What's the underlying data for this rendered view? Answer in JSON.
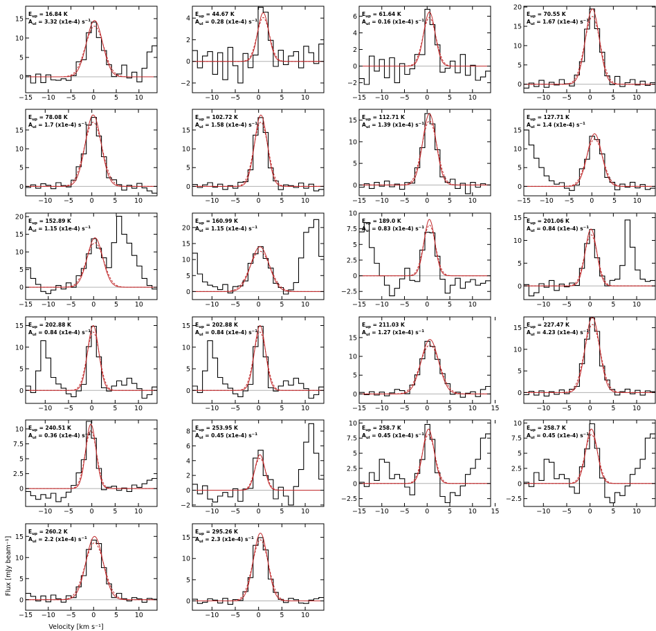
{
  "figure": {
    "xlabel": "Velocity [km s⁻¹]",
    "ylabel": "Flux [mJy beam⁻¹]"
  },
  "chart_data": [
    {
      "type": "line",
      "eup": "16.84",
      "aul": "3.32",
      "xlim": [
        -15,
        14
      ],
      "ylim": [
        -4.1,
        18.2
      ],
      "xticks": [
        -15,
        -10,
        -5,
        0,
        5,
        10
      ],
      "yticks": [
        0,
        5,
        10,
        15
      ],
      "peak": 14.5,
      "fwhm": 4.2,
      "center": 0.2,
      "bg": [
        0.3,
        -1.6,
        0.7,
        -1.5,
        0.5,
        -0.8,
        -0.9,
        -0.5,
        -1.0,
        -0.2,
        1.8,
        -1.4,
        0.4,
        0.1,
        -2.0,
        -0.3,
        0.3,
        -0.7,
        0.6,
        3.0,
        -0.3,
        1.2,
        -1.3,
        2.2,
        6.4,
        8.0
      ]
    },
    {
      "type": "line",
      "eup": "44.67",
      "aul": "0.28",
      "xlim": [
        -14.2,
        14
      ],
      "ylim": [
        -2.9,
        5.1
      ],
      "xticks": [
        -10,
        -5,
        0,
        5,
        10
      ],
      "yticks": [
        -2,
        0,
        2,
        4
      ],
      "peak": 4.5,
      "fwhm": 2.8,
      "center": 1.0,
      "bg": [
        1.0,
        -0.6,
        0.5,
        0.9,
        -1.2,
        0.8,
        -1.7,
        1.3,
        -0.4,
        -2.0,
        0.7,
        -0.9,
        -1.1,
        1.1,
        0.6,
        0.2,
        -0.8,
        1.0,
        -0.3,
        0.5,
        0.9,
        -0.6,
        1.4,
        0.8,
        -0.2,
        1.6
      ]
    },
    {
      "type": "line",
      "eup": "61.64",
      "aul": "0.16",
      "xlim": [
        -15,
        14
      ],
      "ylim": [
        -3.2,
        7.2
      ],
      "xticks": [
        -15,
        -10,
        -5,
        0,
        5,
        10
      ],
      "yticks": [
        -2,
        0,
        2,
        4,
        6
      ],
      "peak": 6.5,
      "fwhm": 3.0,
      "center": 0.5,
      "bg": [
        -1.5,
        -2.2,
        1.2,
        -0.6,
        0.8,
        -1.4,
        1.0,
        -2.0,
        0.3,
        -1.0,
        -0.4,
        0.7,
        -1.6,
        0.9,
        -0.5,
        0.2,
        -1.2,
        -0.3,
        0.6,
        -0.8,
        1.4,
        -1.1,
        0.1,
        -1.7,
        -1.3,
        -0.6
      ]
    },
    {
      "type": "line",
      "eup": "70.55",
      "aul": "1.67",
      "xlim": [
        -14.2,
        14
      ],
      "ylim": [
        -2.2,
        20.2
      ],
      "xticks": [
        -10,
        -5,
        0,
        5,
        10
      ],
      "yticks": [
        0,
        5,
        10,
        15,
        20
      ],
      "peak": 19.5,
      "fwhm": 3.5,
      "center": 0.5,
      "bg": [
        -1.0,
        0.3,
        -0.6,
        1.0,
        -0.8,
        0.5,
        -0.2,
        1.2,
        0.1,
        -0.7,
        0.8,
        -0.3,
        0.2,
        0.6,
        -0.5,
        1.4,
        0.3,
        -0.4,
        2.0,
        -0.6,
        0.4,
        1.2,
        -0.2,
        0.8,
        -0.3,
        0.4
      ]
    },
    {
      "type": "line",
      "eup": "78.08",
      "aul": "1.7",
      "xlim": [
        -14.2,
        14
      ],
      "ylim": [
        -2.5,
        20.5
      ],
      "xticks": [
        -10,
        -5,
        0,
        5,
        10
      ],
      "yticks": [
        0,
        5,
        10,
        15
      ],
      "peak": 19.0,
      "fwhm": 4.0,
      "center": 0.3,
      "bg": [
        -0.3,
        0.4,
        -0.5,
        0.7,
        0.3,
        -0.6,
        1.0,
        0.2,
        -0.3,
        0.8,
        1.8,
        -0.4,
        0.5,
        0.0,
        -0.8,
        0.6,
        -0.2,
        1.2,
        0.4,
        -1.0,
        0.3,
        -0.5,
        0.8,
        -0.4,
        -1.2,
        -1.8
      ]
    },
    {
      "type": "line",
      "eup": "102.72",
      "aul": "1.58",
      "xlim": [
        -14.2,
        14
      ],
      "ylim": [
        -2.5,
        20.5
      ],
      "xticks": [
        -10,
        -5,
        0,
        5,
        10
      ],
      "yticks": [
        0,
        5,
        10,
        15
      ],
      "peak": 19.0,
      "fwhm": 3.2,
      "center": 0.5,
      "bg": [
        0.5,
        -0.3,
        0.4,
        1.0,
        -0.2,
        0.6,
        -0.8,
        0.2,
        -0.5,
        1.0,
        0.3,
        -0.4,
        0.7,
        -0.1,
        0.5,
        -0.6,
        0.3,
        -1.0,
        0.4,
        0.2,
        -0.3,
        0.9,
        -0.5,
        0.6,
        -1.2,
        -0.8
      ]
    },
    {
      "type": "line",
      "eup": "112.71",
      "aul": "1.39",
      "xlim": [
        -15,
        14
      ],
      "ylim": [
        -2.5,
        17.5
      ],
      "xticks": [
        -15,
        -10,
        -5,
        0,
        5,
        10
      ],
      "yticks": [
        0,
        5,
        10,
        15
      ],
      "peak": 16.5,
      "fwhm": 3.5,
      "center": 0.5,
      "bg": [
        -0.5,
        0.3,
        -0.8,
        0.6,
        -0.3,
        0.9,
        -0.4,
        0.2,
        -1.0,
        0.5,
        -0.2,
        0.8,
        -0.6,
        1.2,
        -0.3,
        0.4,
        -0.5,
        0.2,
        1.3,
        -0.8,
        0.4,
        -2.0,
        0.6,
        -0.5,
        0.3,
        0.0
      ]
    },
    {
      "type": "line",
      "eup": "127.71",
      "aul": "1.4",
      "xlim": [
        -15,
        14
      ],
      "ylim": [
        -2.5,
        20.5
      ],
      "xticks": [
        -15,
        -10,
        -5,
        0,
        5,
        10
      ],
      "yticks": [
        0,
        5,
        10,
        15
      ],
      "peak": 14.0,
      "fwhm": 3.8,
      "center": 0.6,
      "bg": [
        15.0,
        11.0,
        7.5,
        5.0,
        2.8,
        1.5,
        0.6,
        1.0,
        -0.5,
        -1.2,
        -0.4,
        1.6,
        -0.8,
        0.5,
        -0.3,
        0.8,
        -0.6,
        0.4,
        -1.0,
        0.6,
        -0.2,
        1.1,
        -0.4,
        0.5,
        -0.8,
        -0.5
      ]
    },
    {
      "type": "line",
      "eup": "152.89",
      "aul": "1.15",
      "xlim": [
        -15,
        14
      ],
      "ylim": [
        -3.5,
        21.0
      ],
      "xticks": [
        -15,
        -10,
        -5,
        0,
        5,
        10
      ],
      "yticks": [
        0,
        5,
        10,
        15,
        20
      ],
      "peak": 14.0,
      "fwhm": 4.0,
      "center": 0.3,
      "bg": [
        5.5,
        2.5,
        0.8,
        -1.2,
        -1.8,
        -0.8,
        0.5,
        -0.5,
        1.2,
        -0.3,
        1.8,
        0.6,
        -0.4,
        0.3,
        -0.8,
        1.5,
        3.0,
        12.0,
        20.0,
        15.0,
        12.5,
        9.0,
        6.0,
        2.5,
        0.5,
        -0.5
      ]
    },
    {
      "type": "line",
      "eup": "160.99",
      "aul": "1.15",
      "xlim": [
        -14.2,
        14
      ],
      "ylim": [
        -2.5,
        24.5
      ],
      "xticks": [
        -10,
        -5,
        0,
        5,
        10
      ],
      "yticks": [
        0,
        5,
        10,
        15,
        20
      ],
      "peak": 14.0,
      "fwhm": 4.6,
      "center": 0.3,
      "bg": [
        12.0,
        5.5,
        3.0,
        2.0,
        1.5,
        0.6,
        2.2,
        -0.5,
        1.2,
        0.4,
        -0.5,
        0.9,
        -0.3,
        0.5,
        -0.8,
        0.6,
        -0.4,
        0.3,
        -1.0,
        0.5,
        2.8,
        10.5,
        18.5,
        20.0,
        22.5,
        11.0
      ]
    },
    {
      "type": "line",
      "eup": "189.0",
      "aul": "0.83",
      "xlim": [
        -15,
        14
      ],
      "ylim": [
        -3.8,
        10.0
      ],
      "xticks": [
        -15,
        -10,
        -5,
        0,
        5,
        10
      ],
      "yticks": [
        -2.5,
        0,
        2.5,
        5,
        7.5,
        10
      ],
      "peak": 9.0,
      "fwhm": 2.8,
      "center": 0.5,
      "bg": [
        7.0,
        8.5,
        4.5,
        2.0,
        0.0,
        -1.5,
        -3.2,
        -2.0,
        -0.5,
        1.2,
        -0.8,
        -1.6,
        0.4,
        -1.2,
        -0.6,
        0.3,
        -1.0,
        -2.8,
        -1.5,
        -0.4,
        -2.0,
        -1.0,
        -0.6,
        -1.5,
        -1.2,
        -0.8
      ]
    },
    {
      "type": "line",
      "eup": "201.06",
      "aul": "0.84",
      "xlim": [
        -14.2,
        14
      ],
      "ylim": [
        -3.0,
        16.0
      ],
      "xticks": [
        -10,
        -5,
        0,
        5,
        10
      ],
      "yticks": [
        0,
        5,
        10,
        15
      ],
      "peak": 12.5,
      "fwhm": 2.9,
      "center": 0.2,
      "bg": [
        0.3,
        -2.2,
        -1.5,
        0.5,
        -0.3,
        1.2,
        -1.0,
        0.4,
        -0.2,
        0.6,
        -0.5,
        0.3,
        -0.3,
        0.5,
        -0.6,
        0.4,
        -0.2,
        1.2,
        1.5,
        4.5,
        14.5,
        8.5,
        3.5,
        1.5,
        1.0,
        1.2
      ]
    },
    {
      "type": "line",
      "eup": "202.88",
      "aul": "0.84",
      "xlim": [
        -14.2,
        14
      ],
      "ylim": [
        -3.0,
        17.0
      ],
      "xticks": [
        -10,
        -5,
        0,
        5,
        10
      ],
      "yticks": [
        0,
        5,
        10,
        15
      ],
      "peak": 15.0,
      "fwhm": 2.8,
      "center": 0.3,
      "bg": [
        1.0,
        -0.5,
        4.5,
        11.5,
        7.5,
        3.0,
        1.5,
        0.5,
        -0.8,
        -1.5,
        -0.6,
        -2.0,
        -0.5,
        0.4,
        -0.8,
        -1.6,
        -0.4,
        1.0,
        2.2,
        1.2,
        2.8,
        1.6,
        0.4,
        -1.8,
        -1.0,
        0.8
      ]
    },
    {
      "type": "line",
      "eup": "202.88",
      "aul": "0.84",
      "xlim": [
        -14.2,
        14
      ],
      "ylim": [
        -3.0,
        17.0
      ],
      "xticks": [
        -10,
        -5,
        0,
        5,
        10
      ],
      "yticks": [
        0,
        5,
        10,
        15
      ],
      "peak": 15.0,
      "fwhm": 2.8,
      "center": 0.3,
      "bg": [
        1.0,
        -0.5,
        4.5,
        11.5,
        7.5,
        3.0,
        1.5,
        0.5,
        -0.8,
        -1.5,
        -0.6,
        -2.0,
        -0.5,
        0.4,
        -0.8,
        -1.6,
        -0.4,
        1.0,
        2.2,
        1.2,
        2.8,
        1.6,
        0.4,
        -1.8,
        -1.0,
        0.8
      ]
    },
    {
      "type": "line",
      "eup": "211.03",
      "aul": "1.27",
      "xlim": [
        -15,
        14
      ],
      "ylim": [
        -2.5,
        20.5
      ],
      "xticks": [
        -15,
        -10,
        -5,
        0,
        5,
        10,
        15
      ],
      "yticks": [
        0,
        5,
        10,
        15
      ],
      "peak": 14.5,
      "fwhm": 4.5,
      "center": 0.6,
      "bg": [
        0.4,
        -0.2,
        0.6,
        -0.3,
        0.5,
        -0.5,
        0.3,
        1.2,
        0.8,
        -0.4,
        0.6,
        0.2,
        -0.3,
        0.5,
        -0.8,
        -0.3,
        0.6,
        1.0,
        -0.5,
        0.4,
        -0.9,
        0.2,
        0.6,
        -0.7,
        1.2,
        2.0
      ]
    },
    {
      "type": "line",
      "eup": "227.47",
      "aul": "4.23",
      "xlim": [
        -14.2,
        14
      ],
      "ylim": [
        -2.5,
        17.5
      ],
      "xticks": [
        -10,
        -5,
        0,
        5,
        10
      ],
      "yticks": [
        0,
        5,
        10,
        15
      ],
      "peak": 17.5,
      "fwhm": 3.6,
      "center": 0.5,
      "bg": [
        -0.5,
        0.3,
        -0.6,
        0.4,
        -0.8,
        0.2,
        -0.4,
        0.6,
        -0.3,
        0.5,
        -0.2,
        0.8,
        -0.5,
        0.3,
        0.6,
        -0.4,
        1.0,
        0.4,
        -0.6,
        0.2,
        0.8,
        -0.3,
        0.5,
        -0.6,
        0.4,
        0.2
      ]
    },
    {
      "type": "line",
      "eup": "240.51",
      "aul": "0.36",
      "xlim": [
        -14.2,
        14
      ],
      "ylim": [
        -3.0,
        11.5
      ],
      "xticks": [
        -10,
        -5,
        0,
        5,
        10
      ],
      "yticks": [
        0,
        2.5,
        5,
        7.5,
        10
      ],
      "peak": 10.8,
      "fwhm": 2.6,
      "center": -0.2,
      "bg": [
        -0.5,
        -1.2,
        -1.8,
        -1.0,
        -1.6,
        -0.8,
        -2.2,
        -1.5,
        -0.6,
        0.5,
        2.0,
        0.8,
        1.6,
        -0.4,
        0.3,
        -0.6,
        0.2,
        0.4,
        -0.3,
        0.1,
        -0.5,
        0.6,
        0.2,
        0.8,
        1.4,
        1.7
      ]
    },
    {
      "type": "line",
      "eup": "253.95",
      "aul": "0.45",
      "xlim": [
        -14.2,
        14
      ],
      "ylim": [
        -2.2,
        9.5
      ],
      "xticks": [
        -10,
        -5,
        0,
        5,
        10
      ],
      "yticks": [
        -2,
        0,
        2,
        4,
        6,
        8
      ],
      "peak": 4.8,
      "fwhm": 2.5,
      "center": 0.3,
      "bg": [
        0.8,
        -0.5,
        0.6,
        -1.2,
        -1.6,
        -0.8,
        -0.3,
        -0.9,
        0.2,
        -1.5,
        0.1,
        -0.5,
        1.2,
        0.8,
        -0.4,
        1.0,
        -1.2,
        0.4,
        -0.8,
        -2.0,
        0.5,
        2.8,
        6.5,
        9.0,
        5.0,
        1.5
      ]
    },
    {
      "type": "line",
      "eup": "258.7",
      "aul": "0.45",
      "xlim": [
        -15,
        14
      ],
      "ylim": [
        -3.8,
        10.5
      ],
      "xticks": [
        -15,
        -10,
        -5,
        0,
        5,
        10,
        15
      ],
      "yticks": [
        -2.5,
        0,
        2.5,
        5,
        7.5,
        10
      ],
      "peak": 9.0,
      "fwhm": 2.9,
      "center": 0.3,
      "bg": [
        0.2,
        -0.5,
        1.8,
        0.5,
        4.0,
        3.5,
        0.8,
        1.5,
        0.8,
        -0.6,
        -2.0,
        0.5,
        -0.8,
        1.2,
        0.5,
        -0.6,
        -2.5,
        -3.2,
        -1.5,
        -2.0,
        -0.4,
        1.5,
        2.5,
        4.0,
        7.5,
        8.2
      ]
    },
    {
      "type": "line",
      "eup": "258.7",
      "aul": "0.45",
      "xlim": [
        -14.2,
        14
      ],
      "ylim": [
        -3.8,
        10.5
      ],
      "xticks": [
        -10,
        -5,
        0,
        5,
        10
      ],
      "yticks": [
        -2.5,
        0,
        2.5,
        5,
        7.5,
        10
      ],
      "peak": 9.0,
      "fwhm": 2.9,
      "center": 0.3,
      "bg": [
        0.2,
        -0.5,
        1.8,
        0.5,
        4.0,
        3.5,
        0.8,
        1.5,
        0.8,
        -0.6,
        -2.0,
        0.5,
        -0.8,
        1.2,
        0.5,
        -0.6,
        -2.5,
        -3.2,
        -1.5,
        -2.0,
        -0.4,
        1.5,
        2.5,
        4.0,
        7.5,
        8.2
      ]
    },
    {
      "type": "line",
      "eup": "260.2",
      "aul": "2.2",
      "xlim": [
        -15,
        14
      ],
      "ylim": [
        -2.5,
        18.0
      ],
      "xticks": [
        -15,
        -10,
        -5,
        0,
        5,
        10
      ],
      "yticks": [
        0,
        5,
        10,
        15
      ],
      "peak": 15.0,
      "fwhm": 4.4,
      "center": 0.2,
      "bg": [
        1.5,
        0.8,
        -0.3,
        0.9,
        -0.5,
        1.1,
        0.2,
        -0.6,
        0.8,
        -0.2,
        0.5,
        -0.8,
        0.3,
        -0.4,
        0.6,
        -0.2,
        0.4,
        -0.5,
        1.3,
        0.2,
        -0.3,
        0.5,
        0.2,
        -0.6,
        0.3,
        0.1
      ]
    },
    {
      "type": "line",
      "eup": "295.26",
      "aul": "2.3",
      "xlim": [
        -14.2,
        14
      ],
      "ylim": [
        -2.2,
        18.2
      ],
      "xticks": [
        -10,
        -5,
        0,
        5,
        10
      ],
      "yticks": [
        0,
        5,
        10,
        15
      ],
      "peak": 16.0,
      "fwhm": 3.6,
      "center": 0.4,
      "bg": [
        0.4,
        -0.6,
        -0.3,
        0.5,
        0.2,
        -0.5,
        0.6,
        -0.8,
        0.3,
        -0.2,
        0.5,
        -0.4,
        0.8,
        -0.6,
        0.2,
        -0.3,
        0.5,
        0.1,
        -0.4,
        0.6,
        0.3,
        -0.5,
        -0.6,
        0.2,
        0.5,
        0.8
      ]
    }
  ]
}
